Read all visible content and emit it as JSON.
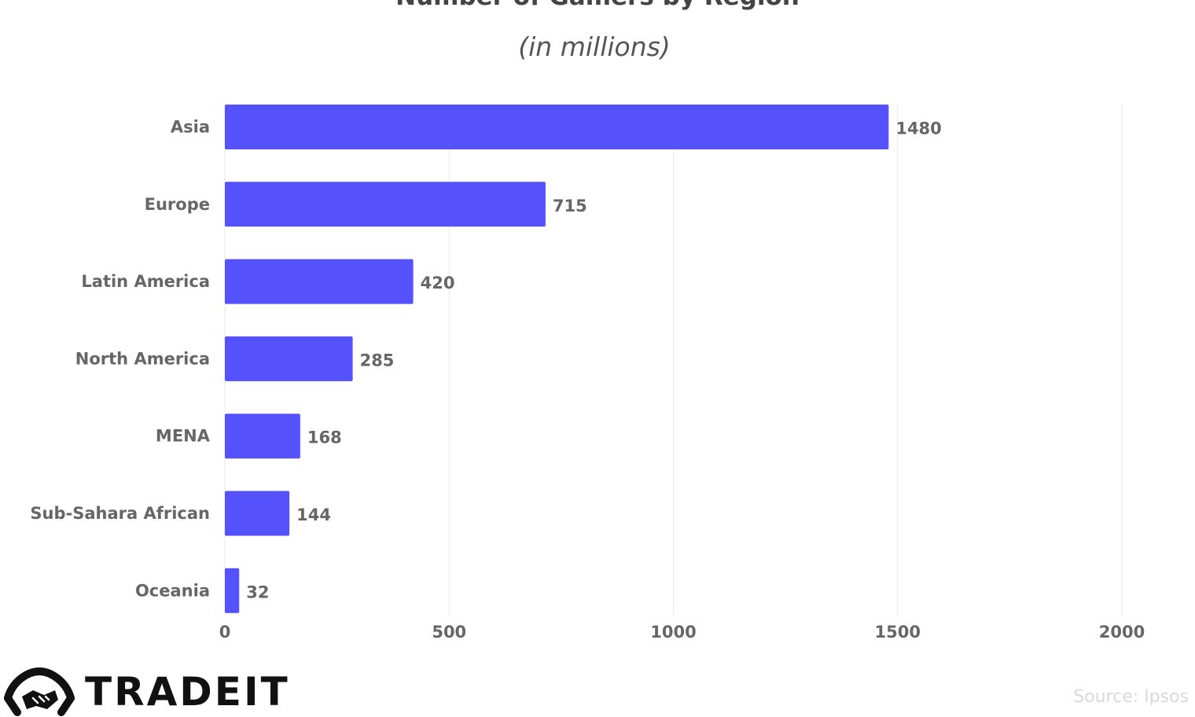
{
  "chart_data": {
    "type": "bar",
    "orientation": "horizontal",
    "title": "Number of Gamers by Region",
    "subtitle": "(in millions)",
    "categories": [
      "Asia",
      "Europe",
      "Latin America",
      "North America",
      "MENA",
      "Sub-Sahara African",
      "Oceania"
    ],
    "values": [
      1480,
      715,
      420,
      285,
      168,
      144,
      32
    ],
    "value_labels": [
      "1480",
      "715",
      "420",
      "285",
      "168",
      "144",
      "32"
    ],
    "xlim": [
      0,
      2000
    ],
    "xticks": [
      "0",
      "500",
      "1000",
      "1500",
      "2000"
    ],
    "xlabel": "",
    "ylabel": "",
    "grid": true,
    "legend": "none",
    "bar_color": "#5552fc"
  },
  "footer": {
    "brand": "TRADEIT",
    "source": "Source: Ipsos"
  },
  "colors": {
    "bar": "#5552fc",
    "label_text": "#666666",
    "grid": "#e9e9e9",
    "source_text": "#d9d9d9"
  }
}
